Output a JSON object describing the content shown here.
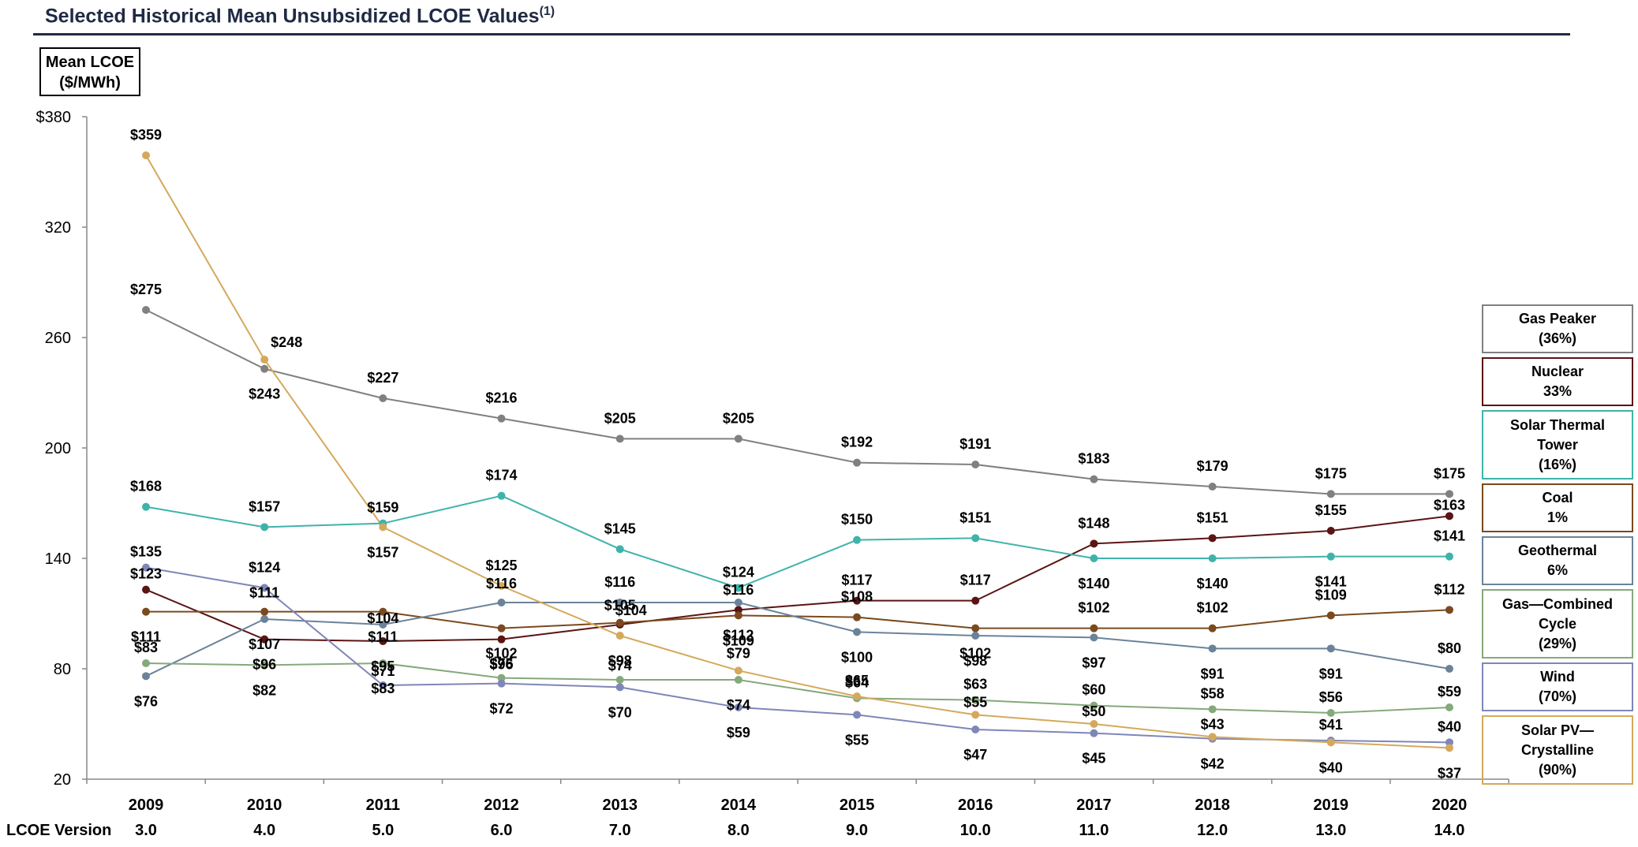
{
  "header": {
    "title": "Selected Historical Mean Unsubsidized LCOE Values",
    "title_superscript": "(1)"
  },
  "unit_label": {
    "line1": "Mean LCOE",
    "line2": "($/MWh)"
  },
  "chart_data": {
    "type": "line",
    "title": "Selected Historical Mean Unsubsidized LCOE Values",
    "ylabel": "Mean LCOE ($/MWh)",
    "ylim": [
      20,
      380
    ],
    "yticks": [
      20,
      80,
      140,
      200,
      260,
      320,
      380
    ],
    "ytick_labels": [
      "20",
      "80",
      "140",
      "200",
      "260",
      "320",
      "$380"
    ],
    "categories": [
      "2009",
      "2010",
      "2011",
      "2012",
      "2013",
      "2014",
      "2015",
      "2016",
      "2017",
      "2018",
      "2019",
      "2020"
    ],
    "version_label": "LCOE Version",
    "versions": [
      "3.0",
      "4.0",
      "5.0",
      "6.0",
      "7.0",
      "8.0",
      "9.0",
      "10.0",
      "11.0",
      "12.0",
      "13.0",
      "14.0"
    ],
    "legend_position": "right",
    "series": [
      {
        "name": "Gas Peaker",
        "legend": [
          "Gas Peaker",
          "(36%)"
        ],
        "color": "#808080",
        "values": [
          275,
          243,
          227,
          216,
          205,
          205,
          192,
          191,
          183,
          179,
          175,
          175
        ],
        "labels": [
          "$275",
          "$243",
          "$227",
          "$216",
          "$205",
          "$205",
          "$192",
          "$191",
          "$183",
          "$179",
          "$175",
          "$175"
        ]
      },
      {
        "name": "Nuclear",
        "legend": [
          "Nuclear",
          "33%"
        ],
        "color": "#5a1414",
        "values": [
          123,
          96,
          95,
          96,
          104,
          112,
          117,
          117,
          148,
          151,
          155,
          163
        ],
        "labels": [
          "$123",
          "$96",
          "$95",
          "$96",
          "$104",
          "$112",
          "$117",
          "$117",
          "$148",
          "$151",
          "$155",
          "$163"
        ]
      },
      {
        "name": "Solar Thermal Tower",
        "legend": [
          "Solar Thermal",
          "Tower",
          "(16%)"
        ],
        "color": "#3fb3aa",
        "values": [
          168,
          157,
          159,
          174,
          145,
          124,
          150,
          151,
          140,
          140,
          141,
          141
        ],
        "labels": [
          "$168",
          "$157",
          "$159",
          "$174",
          "$145",
          "$124",
          "$150",
          "$151",
          "$140",
          "$140",
          "$141",
          "$141"
        ]
      },
      {
        "name": "Coal",
        "legend": [
          "Coal",
          "1%"
        ],
        "color": "#7a4a1e",
        "values": [
          111,
          111,
          111,
          102,
          105,
          109,
          108,
          102,
          102,
          102,
          109,
          112
        ],
        "labels": [
          "$111",
          "$111",
          "$111",
          "$102",
          "$105",
          "$109",
          "$108",
          "$102",
          "$102",
          "$102",
          "$109",
          "$112"
        ]
      },
      {
        "name": "Geothermal",
        "legend": [
          "Geothermal",
          "6%"
        ],
        "color": "#6b8399",
        "values": [
          76,
          107,
          104,
          116,
          116,
          116,
          100,
          98,
          97,
          91,
          91,
          80
        ],
        "labels": [
          "$76",
          "$107",
          "$104",
          "$116",
          "$116",
          "$116",
          "$100",
          "$98",
          "$97",
          "$91",
          "$91",
          "$80"
        ]
      },
      {
        "name": "Gas—Combined Cycle",
        "legend": [
          "Gas—Combined",
          "Cycle",
          "(29%)"
        ],
        "color": "#86a97c",
        "values": [
          83,
          82,
          83,
          75,
          74,
          74,
          64,
          63,
          60,
          58,
          56,
          59
        ],
        "labels": [
          "$83",
          "$82",
          "$83",
          "$75",
          "$74",
          "$74",
          "$64",
          "$63",
          "$60",
          "$58",
          "$56",
          "$59"
        ]
      },
      {
        "name": "Wind",
        "legend": [
          "Wind",
          "(70%)"
        ],
        "color": "#7f86b8",
        "values": [
          135,
          124,
          71,
          72,
          70,
          59,
          55,
          47,
          45,
          42,
          41,
          40
        ],
        "labels": [
          "$135",
          "$124",
          "$71",
          "$72",
          "$70",
          "$59",
          "$55",
          "$47",
          "$45",
          "$42",
          "$41",
          "$40"
        ]
      },
      {
        "name": "Solar PV—Crystalline",
        "legend": [
          "Solar PV—",
          "Crystalline",
          "(90%)"
        ],
        "color": "#d4a95c",
        "values": [
          359,
          248,
          157,
          125,
          98,
          79,
          65,
          55,
          50,
          43,
          40,
          37
        ],
        "labels": [
          "$359",
          "$248",
          "$157",
          "$125",
          "$98",
          "$79",
          "$65",
          "$55",
          "$50",
          "$43",
          "$40",
          "$37"
        ]
      }
    ]
  }
}
